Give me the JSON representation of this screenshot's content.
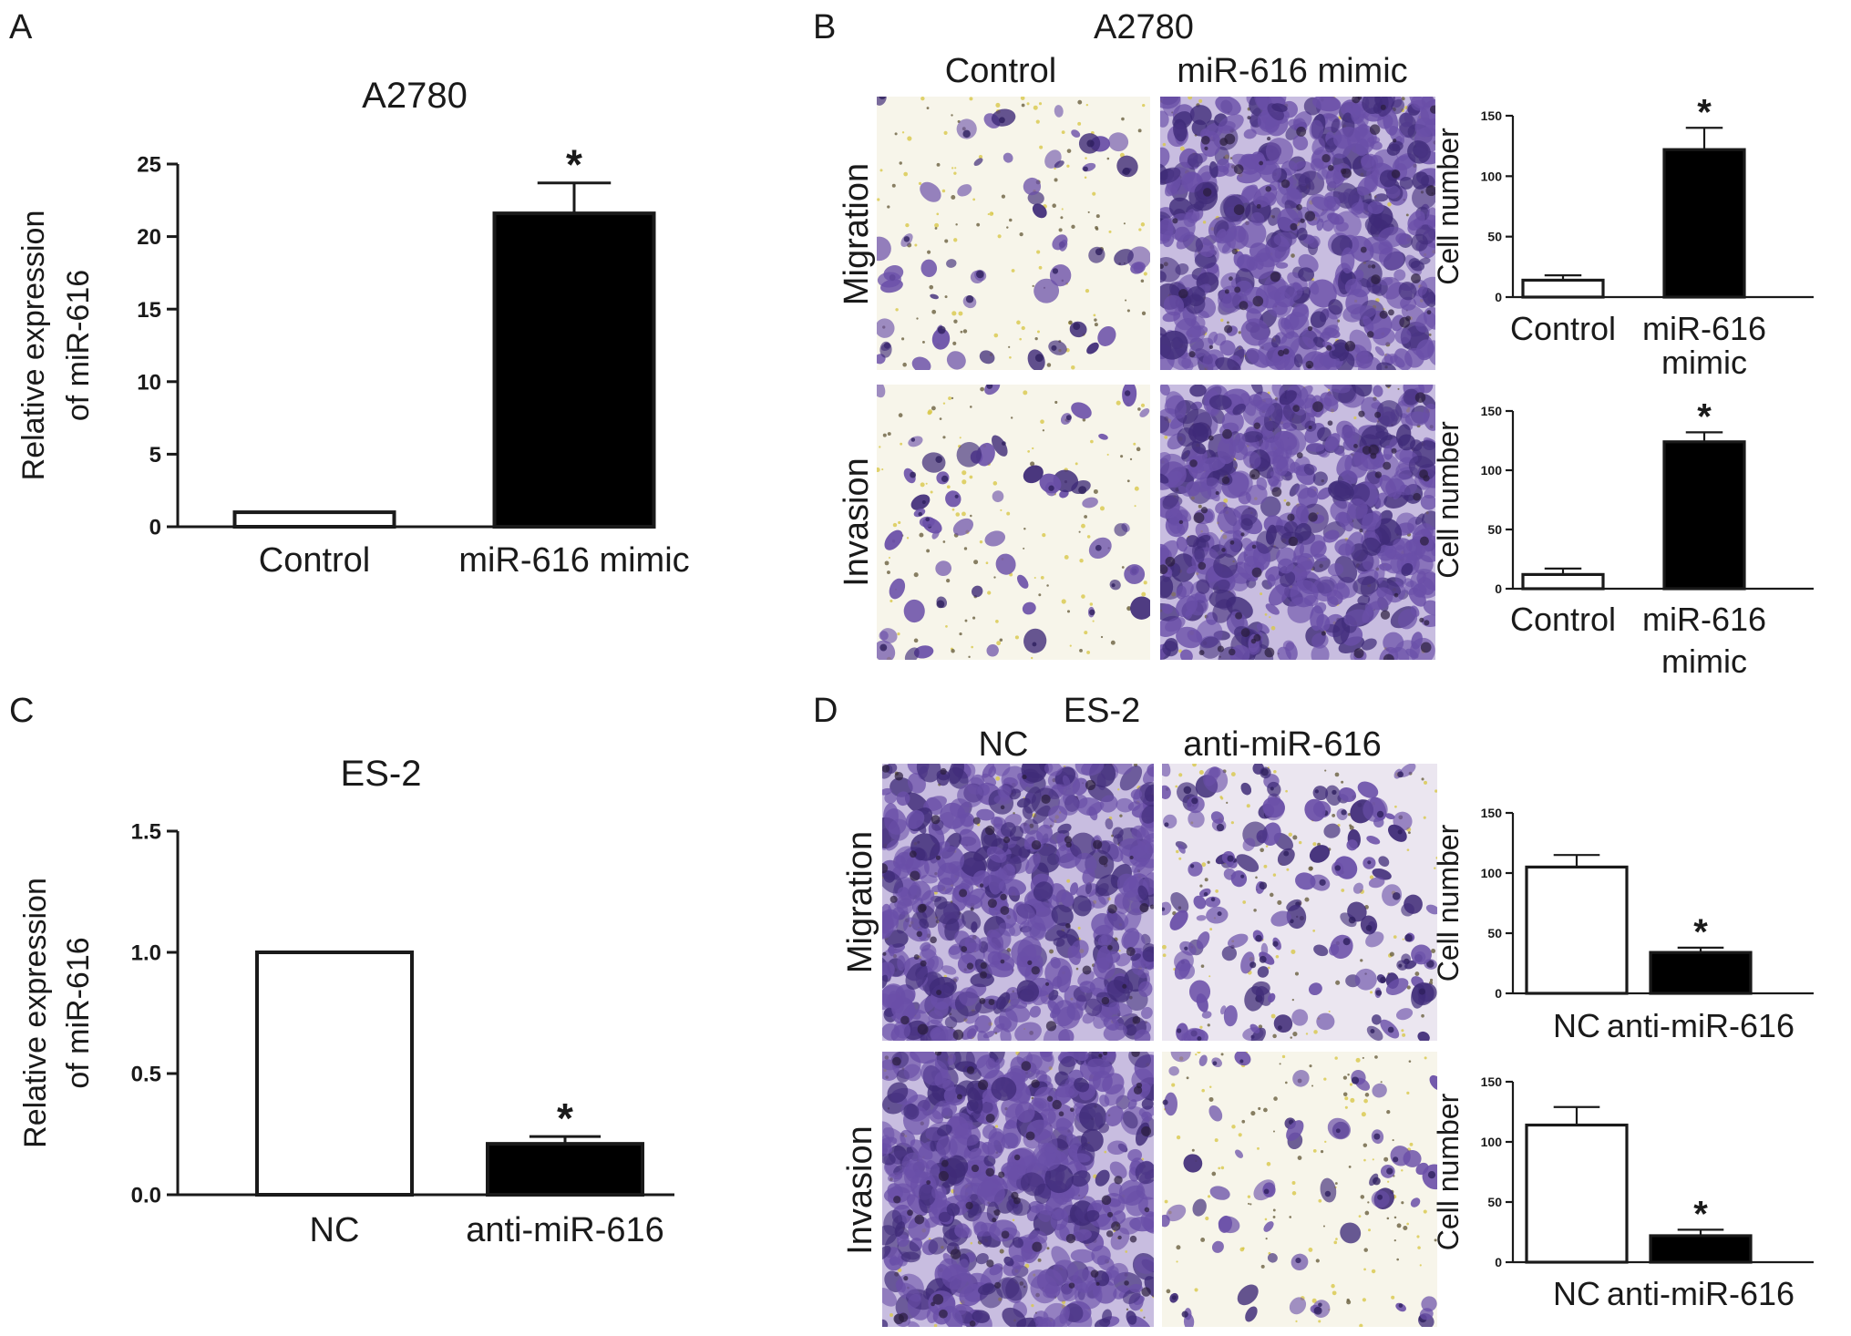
{
  "colors": {
    "axis": "#1a1a1a",
    "bar_control": "#ffffff",
    "bar_treatment": "#000000",
    "stain_light": "#f7f5ea",
    "stain_dense": "#c8bde0",
    "cell": "#6a4fa8",
    "cell_dark": "#3f2b78",
    "debris": "#d8c84a"
  },
  "panels": {
    "A": {
      "letter": "A"
    },
    "B": {
      "letter": "B",
      "title": "A2780",
      "col_left": "Control",
      "col_right": "miR-616 mimic",
      "row_top": "Migration",
      "row_bottom": "Invasion"
    },
    "C": {
      "letter": "C"
    },
    "D": {
      "letter": "D",
      "title": "ES-2",
      "col_left": "NC",
      "col_right": "anti-miR-616",
      "row_top": "Migration",
      "row_bottom": "Invasion"
    }
  },
  "micrographs": [
    {
      "panel": "B",
      "row": "Migration",
      "group": "Control",
      "density": "sparse"
    },
    {
      "panel": "B",
      "row": "Migration",
      "group": "miR-616 mimic",
      "density": "dense"
    },
    {
      "panel": "B",
      "row": "Invasion",
      "group": "Control",
      "density": "sparse"
    },
    {
      "panel": "B",
      "row": "Invasion",
      "group": "miR-616 mimic",
      "density": "dense"
    },
    {
      "panel": "D",
      "row": "Migration",
      "group": "NC",
      "density": "dense"
    },
    {
      "panel": "D",
      "row": "Migration",
      "group": "anti-miR-616",
      "density": "medium"
    },
    {
      "panel": "D",
      "row": "Invasion",
      "group": "NC",
      "density": "dense"
    },
    {
      "panel": "D",
      "row": "Invasion",
      "group": "anti-miR-616",
      "density": "sparse"
    }
  ],
  "chart_data": [
    {
      "id": "A",
      "type": "bar",
      "title": "A2780",
      "ylabel": [
        "Relative expression",
        "of miR-616"
      ],
      "xlabel": "",
      "categories": [
        [
          "Control"
        ],
        [
          "miR-616 mimic"
        ]
      ],
      "values": [
        1.0,
        21.6
      ],
      "errors": [
        0,
        2.1
      ],
      "significance": [
        "",
        "*"
      ],
      "ylim": [
        0,
        25
      ],
      "yticks": [
        "0",
        "5",
        "10",
        "15",
        "20",
        "25"
      ],
      "ytick_values": [
        0,
        5,
        10,
        15,
        20,
        25
      ],
      "grid": false
    },
    {
      "id": "B-migration",
      "type": "bar",
      "title": "",
      "ylabel": [
        "Cell number"
      ],
      "xlabel": "",
      "categories": [
        [
          "Control"
        ],
        [
          "miR-616",
          "mimic"
        ]
      ],
      "values": [
        14,
        122
      ],
      "errors": [
        4,
        18
      ],
      "significance": [
        "",
        "*"
      ],
      "ylim": [
        0,
        150
      ],
      "yticks": [
        "0",
        "50",
        "100",
        "150"
      ],
      "ytick_values": [
        0,
        50,
        100,
        150
      ],
      "grid": false
    },
    {
      "id": "B-invasion",
      "type": "bar",
      "title": "",
      "ylabel": [
        "Cell number"
      ],
      "xlabel": "",
      "categories": [
        [
          "Control"
        ],
        [
          "miR-616",
          "mimic"
        ]
      ],
      "values": [
        12,
        124
      ],
      "errors": [
        5,
        8
      ],
      "significance": [
        "",
        "*"
      ],
      "ylim": [
        0,
        150
      ],
      "yticks": [
        "0",
        "50",
        "100",
        "150"
      ],
      "ytick_values": [
        0,
        50,
        100,
        150
      ],
      "grid": false
    },
    {
      "id": "C",
      "type": "bar",
      "title": "ES-2",
      "ylabel": [
        "Relative expression",
        "of miR-616"
      ],
      "xlabel": "",
      "categories": [
        [
          "NC"
        ],
        [
          "anti-miR-616"
        ]
      ],
      "values": [
        1.0,
        0.21
      ],
      "errors": [
        0,
        0.03
      ],
      "significance": [
        "",
        "*"
      ],
      "ylim": [
        0,
        1.5
      ],
      "yticks": [
        "0.0",
        "0.5",
        "1.0",
        "1.5"
      ],
      "ytick_values": [
        0,
        0.5,
        1.0,
        1.5
      ],
      "grid": false
    },
    {
      "id": "D-migration",
      "type": "bar",
      "title": "",
      "ylabel": [
        "Cell number"
      ],
      "xlabel": "",
      "categories": [
        [
          "NC"
        ],
        [
          "anti-miR-616"
        ]
      ],
      "values": [
        105,
        34
      ],
      "errors": [
        10,
        4
      ],
      "significance": [
        "",
        "*"
      ],
      "ylim": [
        0,
        150
      ],
      "yticks": [
        "0",
        "50",
        "100",
        "150"
      ],
      "ytick_values": [
        0,
        50,
        100,
        150
      ],
      "grid": false
    },
    {
      "id": "D-invasion",
      "type": "bar",
      "title": "",
      "ylabel": [
        "Cell number"
      ],
      "xlabel": "",
      "categories": [
        [
          "NC"
        ],
        [
          "anti-miR-616"
        ]
      ],
      "values": [
        114,
        22
      ],
      "errors": [
        15,
        5
      ],
      "significance": [
        "",
        "*"
      ],
      "ylim": [
        0,
        150
      ],
      "yticks": [
        "0",
        "50",
        "100",
        "150"
      ],
      "ytick_values": [
        0,
        50,
        100,
        150
      ],
      "grid": false
    }
  ]
}
